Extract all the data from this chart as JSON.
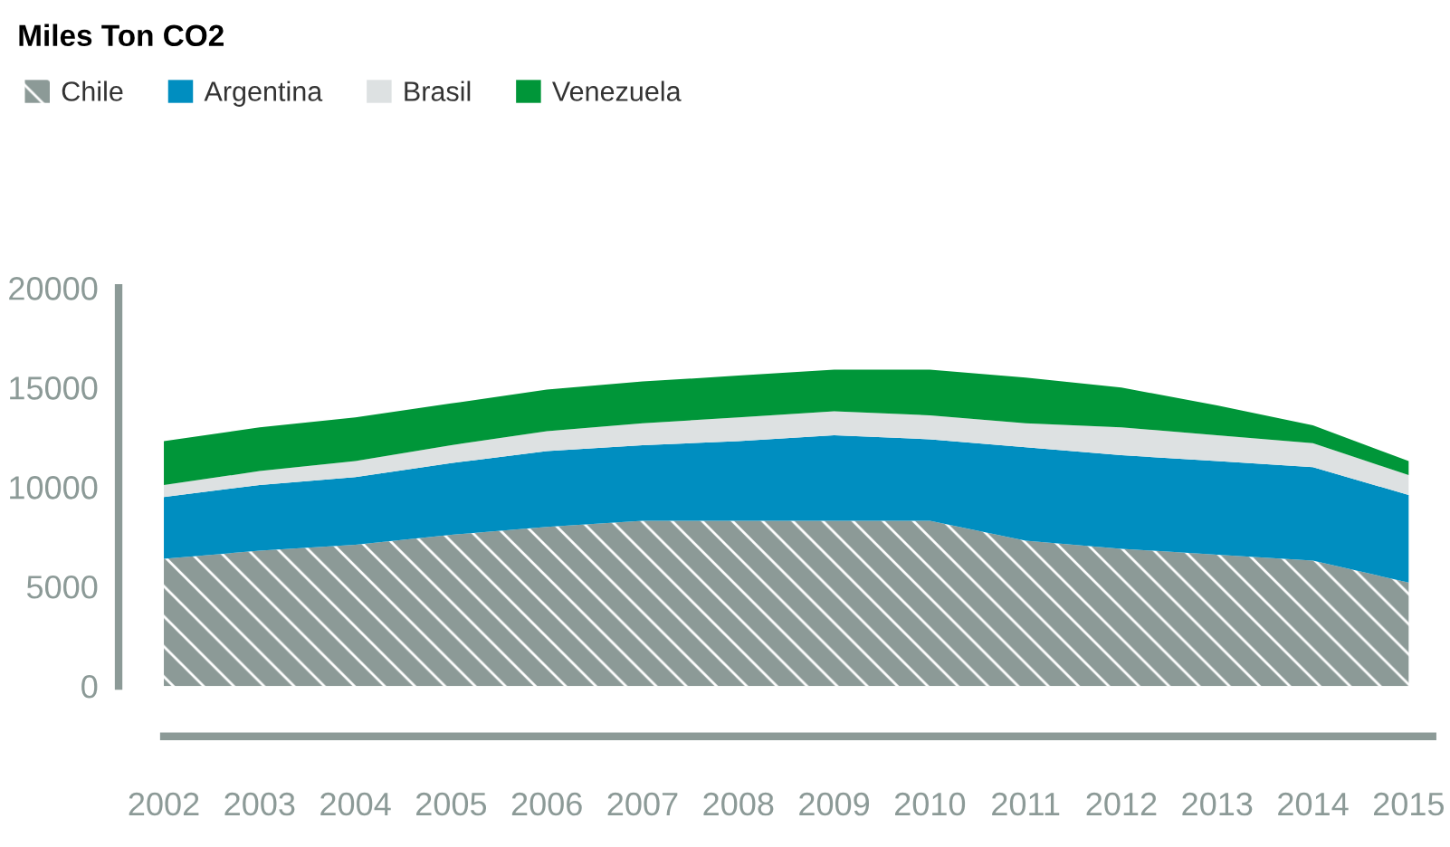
{
  "chart_data": {
    "type": "area",
    "stacked": true,
    "title": "Miles Ton CO2",
    "categories": [
      "2002",
      "2003",
      "2004",
      "2005",
      "2006",
      "2007",
      "2008",
      "2009",
      "2010",
      "2011",
      "2012",
      "2013",
      "2014",
      "2015"
    ],
    "series": [
      {
        "name": "Chile",
        "color": "#8c9a97",
        "values": [
          6400,
          6800,
          7100,
          7600,
          8000,
          8300,
          8300,
          8300,
          8300,
          7300,
          6900,
          6600,
          6300,
          5200
        ]
      },
      {
        "name": "Argentina",
        "color": "#008ec0",
        "values": [
          3100,
          3300,
          3400,
          3600,
          3800,
          3800,
          4000,
          4300,
          4100,
          4700,
          4700,
          4700,
          4700,
          4400
        ]
      },
      {
        "name": "Brasil",
        "color": "#dde1e2",
        "values": [
          600,
          700,
          800,
          900,
          1000,
          1100,
          1200,
          1200,
          1200,
          1200,
          1400,
          1300,
          1200,
          1000
        ]
      },
      {
        "name": "Venezuela",
        "color": "#009639",
        "values": [
          2200,
          2200,
          2200,
          2100,
          2100,
          2100,
          2100,
          2100,
          2300,
          2300,
          2000,
          1500,
          900,
          700
        ]
      }
    ],
    "ylim": [
      0,
      20000
    ],
    "yticks": [
      0,
      5000,
      10000,
      15000,
      20000
    ],
    "grid": false,
    "legend": "top left"
  }
}
